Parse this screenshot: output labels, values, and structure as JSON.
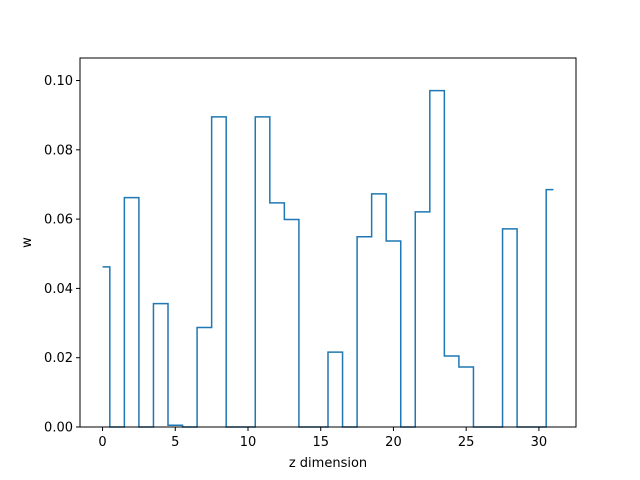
{
  "chart_data": {
    "type": "line",
    "drawstyle": "steps-mid",
    "title": "",
    "xlabel": "z dimension",
    "ylabel": "w",
    "xlim": [
      -1.55,
      32.55
    ],
    "ylim": [
      0.0,
      0.1065
    ],
    "x_ticks": [
      0,
      5,
      10,
      15,
      20,
      25,
      30
    ],
    "x_tick_labels": [
      "0",
      "5",
      "10",
      "15",
      "20",
      "25",
      "30"
    ],
    "y_ticks": [
      0.0,
      0.02,
      0.04,
      0.06,
      0.08,
      0.1
    ],
    "y_tick_labels": [
      "0.00",
      "0.02",
      "0.04",
      "0.06",
      "0.08",
      "0.10"
    ],
    "grid": false,
    "series": [
      {
        "color": "#1f77b4",
        "x": [
          0,
          1,
          2,
          3,
          4,
          5,
          6,
          7,
          8,
          9,
          10,
          11,
          12,
          13,
          14,
          15,
          16,
          17,
          18,
          19,
          20,
          21,
          22,
          23,
          24,
          25,
          26,
          27,
          28,
          29,
          30,
          31
        ],
        "values": [
          0.0462,
          0.0,
          0.0662,
          0.0,
          0.0356,
          0.0005,
          0.0,
          0.0287,
          0.0895,
          0.0,
          0.0,
          0.0895,
          0.0647,
          0.0599,
          0.0,
          0.0,
          0.0216,
          0.0,
          0.0549,
          0.0673,
          0.0537,
          0.0,
          0.0621,
          0.0971,
          0.0205,
          0.0173,
          0.0,
          0.0,
          0.0572,
          0.0,
          0.0,
          0.0685
        ]
      }
    ]
  }
}
